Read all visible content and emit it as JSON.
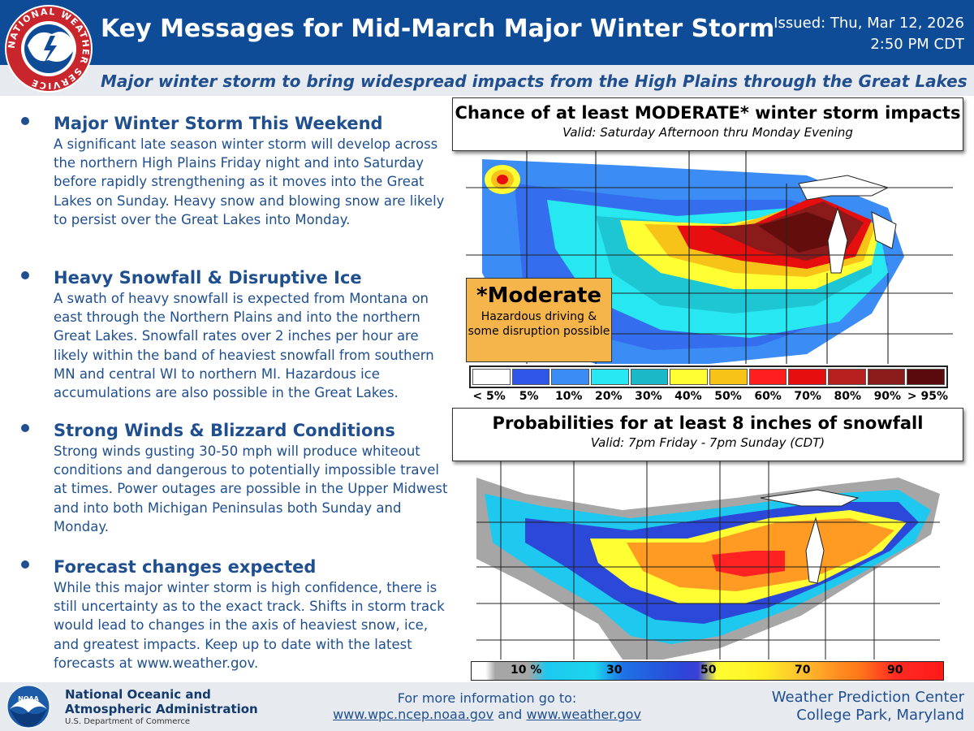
{
  "header": {
    "title": "Key Messages for Mid-March Major Winter Storm",
    "issued_line1": "Issued: Thu, Mar 12, 2026",
    "issued_line2": "2:50 PM CDT",
    "subtitle": "Major winter storm to bring widespread impacts from the High Plains through the Great Lakes",
    "logo_ring_text": "NATIONAL WEATHER SERVICE"
  },
  "messages": [
    {
      "heading": "Major Winter Storm This Weekend",
      "text": "A significant late season winter storm will develop across the northern High Plains Friday night and into Saturday before rapidly strengthening as it moves into the Great Lakes on Sunday. Heavy snow and blowing snow are likely to persist over the Great Lakes into Monday."
    },
    {
      "heading": "Heavy Snowfall & Disruptive Ice",
      "text": "A swath of heavy snowfall is expected from Montana on east through the Northern Plains and into the northern Great Lakes. Snowfall rates over 2 inches per hour are likely within the band of heaviest snowfall from southern MN and central WI to northern MI. Hazardous ice accumulations are also possible in the Great Lakes."
    },
    {
      "heading": "Strong Winds & Blizzard Conditions",
      "text": "Strong winds gusting 30-50 mph will produce whiteout conditions and dangerous to potentially impossible travel at times. Power outages are possible in the Upper Midwest and into both Michigan Peninsulas both Sunday and Monday."
    },
    {
      "heading": "Forecast changes expected",
      "text": "While this major winter storm is high confidence, there is still uncertainty as to the exact track. Shifts in storm track would lead to changes in the axis of heaviest snow, ice, and greatest impacts. Keep up to date with the latest forecasts at www.weather.gov."
    }
  ],
  "panel1": {
    "title": "Chance of at least MODERATE* winter storm impacts",
    "valid": "Valid: Saturday Afternoon thru Monday Evening",
    "moderate_title": "*Moderate",
    "moderate_desc": "Hazardous driving & some disruption possible",
    "legend_labels": [
      "< 5%",
      "5%",
      "10%",
      "20%",
      "30%",
      "40%",
      "50%",
      "60%",
      "70%",
      "80%",
      "90%",
      "> 95%"
    ],
    "legend_colors": [
      "#ffffff",
      "#2e55e8",
      "#3c8cf5",
      "#27e8f0",
      "#1bb8c8",
      "#ffff33",
      "#f7c318",
      "#ff1f1f",
      "#e60e0e",
      "#b82020",
      "#8b1a1a",
      "#5a0a0a"
    ]
  },
  "panel2": {
    "title": "Probabilities for at least 8 inches of snowfall",
    "valid": "Valid: 7pm Friday - 7pm Sunday (CDT)",
    "legend_labels": [
      "10 %",
      "30",
      "50",
      "70",
      "90"
    ]
  },
  "footer": {
    "noaa_logo_text": "NOAA",
    "noaa_name_line1": "National Oceanic and",
    "noaa_name_line2": "Atmospheric Administration",
    "noaa_dept": "U.S. Department of Commerce",
    "more_info": "For more information go to:",
    "link1": "www.wpc.ncep.noaa.gov",
    "link_and": "and",
    "link2": "www.weather.gov",
    "wpc_line1": "Weather Prediction Center",
    "wpc_line2": "College Park, Maryland"
  }
}
